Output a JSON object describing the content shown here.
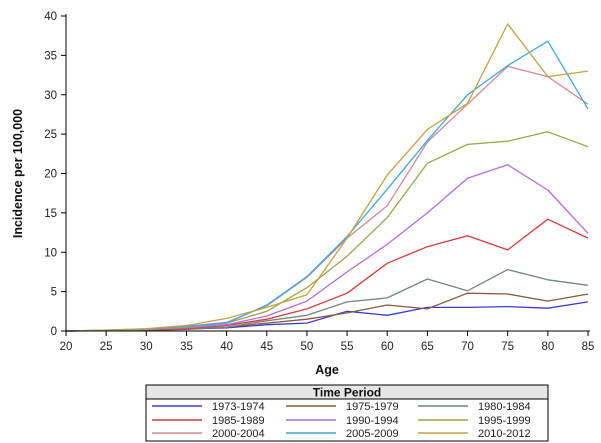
{
  "chart_data": {
    "type": "line",
    "xlabel": "Age",
    "ylabel": "Incidence per 100,000",
    "xlim": [
      20,
      85
    ],
    "ylim": [
      0,
      40
    ],
    "x_ticks": [
      20,
      25,
      30,
      35,
      40,
      45,
      50,
      55,
      60,
      65,
      70,
      75,
      80,
      85
    ],
    "y_ticks": [
      0,
      5,
      10,
      15,
      20,
      25,
      30,
      35,
      40
    ],
    "grid": false,
    "legend_title": "Time Period",
    "legend_position": "bottom",
    "x": [
      20,
      25,
      30,
      35,
      40,
      45,
      50,
      55,
      60,
      65,
      70,
      75,
      80,
      85
    ],
    "series": [
      {
        "name": "1973-1974",
        "color": "#3b3bdc",
        "values": [
          0,
          0.05,
          0.1,
          0.25,
          0.4,
          0.8,
          1.0,
          2.5,
          2.0,
          3.0,
          3.0,
          3.1,
          2.9,
          3.7
        ]
      },
      {
        "name": "1975-1979",
        "color": "#8b5a3c",
        "values": [
          0,
          0.05,
          0.1,
          0.2,
          0.5,
          1.0,
          1.5,
          2.3,
          3.3,
          2.8,
          4.8,
          4.7,
          3.8,
          4.7
        ]
      },
      {
        "name": "1980-1984",
        "color": "#6f8a7c",
        "values": [
          0,
          0.05,
          0.1,
          0.3,
          0.5,
          1.3,
          2.0,
          3.7,
          4.2,
          6.6,
          5.1,
          7.8,
          6.5,
          5.8
        ]
      },
      {
        "name": "1985-1989",
        "color": "#d9393a",
        "values": [
          0,
          0.05,
          0.15,
          0.3,
          0.7,
          1.5,
          2.8,
          4.8,
          8.6,
          10.7,
          12.1,
          10.3,
          14.2,
          11.8
        ]
      },
      {
        "name": "1990-1994",
        "color": "#b36ae6",
        "values": [
          0,
          0.05,
          0.2,
          0.4,
          0.8,
          1.9,
          3.8,
          7.5,
          11.0,
          15.0,
          19.4,
          21.1,
          17.9,
          12.4
        ]
      },
      {
        "name": "1995-1999",
        "color": "#94aa45",
        "values": [
          0,
          0.05,
          0.2,
          0.5,
          1.0,
          2.5,
          5.5,
          9.5,
          14.4,
          21.3,
          23.7,
          24.1,
          25.3,
          23.4
        ]
      },
      {
        "name": "2000-2004",
        "color": "#d88890",
        "values": [
          0,
          0.1,
          0.2,
          0.6,
          1.1,
          3.2,
          6.8,
          11.8,
          15.9,
          24.0,
          28.8,
          33.6,
          32.3,
          28.8
        ]
      },
      {
        "name": "2005-2009",
        "color": "#3aa8e8",
        "values": [
          0,
          0.1,
          0.25,
          0.6,
          1.0,
          3.3,
          6.9,
          12.0,
          18.0,
          24.2,
          30.0,
          33.7,
          36.8,
          28.2
        ]
      },
      {
        "name": "2010-2012",
        "color": "#c8a040",
        "values": [
          0,
          0.1,
          0.3,
          0.7,
          1.6,
          3.0,
          4.6,
          11.8,
          19.8,
          25.6,
          28.9,
          39.0,
          32.3,
          33.0
        ]
      }
    ]
  }
}
